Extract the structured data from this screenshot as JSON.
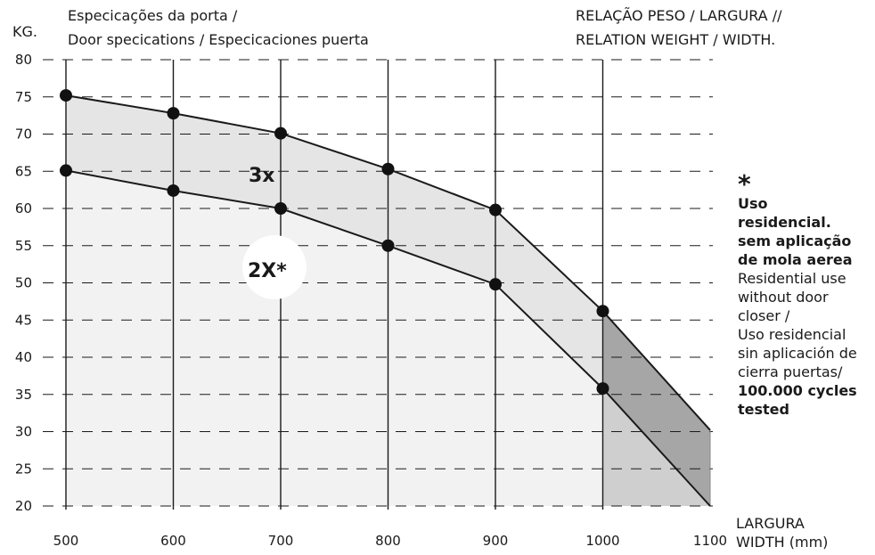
{
  "chart_data": {
    "type": "area",
    "y_unit": "KG.",
    "title_left": [
      "Especicações da porta /",
      "Door specications / Especicaciones puerta"
    ],
    "title_right": [
      "RELAÇÃO PESO / LARGURA //",
      "RELATION WEIGHT / WIDTH."
    ],
    "xlabel": [
      "LARGURA",
      "WIDTH (mm)"
    ],
    "x_ticks": [
      500,
      600,
      700,
      800,
      900,
      1000,
      1100
    ],
    "y_ticks": [
      20,
      25,
      30,
      35,
      40,
      45,
      50,
      55,
      60,
      65,
      70,
      75,
      80
    ],
    "xlim": [
      500,
      1100
    ],
    "ylim": [
      20,
      80
    ],
    "grid": {
      "vertical": "solid",
      "horizontal": "dashed"
    },
    "series": [
      {
        "label": "3x",
        "x": [
          500,
          600,
          700,
          800,
          900,
          1000,
          1100
        ],
        "y": [
          75.2,
          72.8,
          70.1,
          65.3,
          59.8,
          46.2,
          30.2
        ],
        "markers": [
          true,
          true,
          true,
          true,
          true,
          true,
          false
        ]
      },
      {
        "label": "2X*",
        "x": [
          500,
          600,
          700,
          800,
          900,
          1000,
          1100
        ],
        "y": [
          65.1,
          62.4,
          60.0,
          55.0,
          49.8,
          35.8,
          20.0
        ],
        "markers": [
          true,
          true,
          true,
          true,
          true,
          true,
          false
        ]
      }
    ],
    "colors": {
      "upper_band": "#e5e5e5",
      "lower_area": "#f2f2f2",
      "upper_band_beyond_1000": "#a6a6a6",
      "lower_area_beyond_1000": "#cfcfcf",
      "lines": "#1a1a1a"
    }
  },
  "note": {
    "star": "*",
    "bold_lines": [
      "Uso",
      "residencial.",
      "sem aplicação",
      "de mola aerea"
    ],
    "lines": [
      "Residential use",
      "without door",
      "closer /",
      "Uso residencial",
      "sin aplicación de",
      "cierra puertas/"
    ],
    "bold_tail": [
      "100.000 cycles",
      "tested"
    ]
  }
}
